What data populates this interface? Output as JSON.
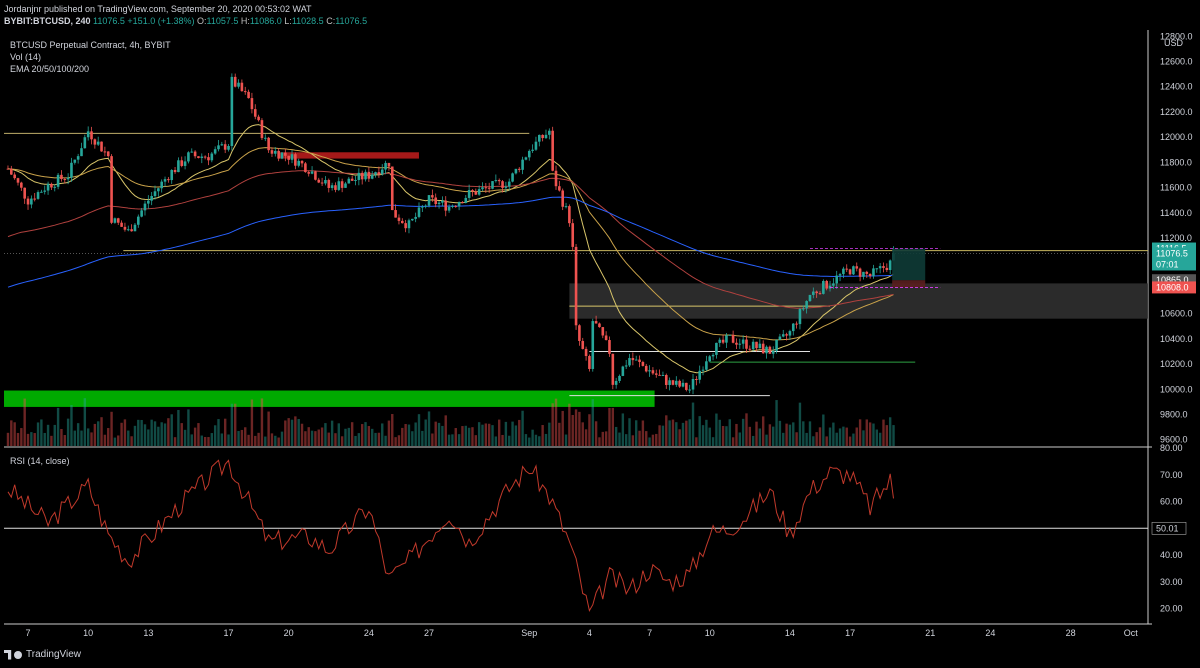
{
  "header": {
    "publisher": "Jordanjnr published on TradingView.com, September 20, 2020 00:53:02 WAT",
    "symbol": "BYBIT:BTCUSD, 240",
    "last": "11076.5",
    "change": "+151.0 (+1.38%)",
    "open_label": "O:",
    "open": "11057.5",
    "high_label": "H:",
    "high": "11086.0",
    "low_label": "L:",
    "low": "11028.5",
    "close_label": "C:",
    "close": "11076.5"
  },
  "legend": {
    "title": "BTCUSD Perpetual Contract, 4h, BYBIT",
    "volume": "Vol (14)",
    "ema": "EMA 20/50/100/200",
    "rsi": "RSI (14, close)"
  },
  "footer": {
    "brand": "TradingView"
  },
  "colors": {
    "background": "#000000",
    "up": "#26a69a",
    "down": "#ef5350",
    "ema20": "#d8c56a",
    "ema50": "#c9a24a",
    "ema100": "#b0413e",
    "ema200": "#2962ff",
    "rsi": "#c0392b",
    "support_zone": "#00b300",
    "resistance_zone": "#b71c1c",
    "gray_zone": "#2a2a2a"
  },
  "chart_data": [
    {
      "type": "candlestick",
      "title": "BTCUSD Perpetual Contract, 4h, BYBIT",
      "currency": "USD",
      "y_ticks": [
        9600,
        9800,
        10000,
        10200,
        10400,
        10600,
        10800,
        11000,
        11200,
        11400,
        11600,
        11800,
        12000,
        12200,
        12400,
        12600,
        12800
      ],
      "ylim": [
        9550,
        12850
      ],
      "x_ticks": [
        "7",
        "10",
        "13",
        "17",
        "20",
        "24",
        "27",
        "Sep",
        "4",
        "7",
        "10",
        "14",
        "17",
        "21",
        "24",
        "28",
        "Oct"
      ],
      "price_path": [
        [
          "Aug 6",
          11750
        ],
        [
          "Aug 7",
          11500
        ],
        [
          "Aug 8",
          11620
        ],
        [
          "Aug 9",
          11700
        ],
        [
          "Aug 10",
          12050
        ],
        [
          "Aug 11",
          11850
        ],
        [
          "Aug 11",
          11350
        ],
        [
          "Aug 12",
          11250
        ],
        [
          "Aug 13",
          11500
        ],
        [
          "Aug 14",
          11700
        ],
        [
          "Aug 15",
          11850
        ],
        [
          "Aug 16",
          11850
        ],
        [
          "Aug 17",
          11950
        ],
        [
          "Aug 17",
          12450
        ],
        [
          "Aug 18",
          12300
        ],
        [
          "Aug 19",
          11900
        ],
        [
          "Aug 20",
          11850
        ],
        [
          "Aug 21",
          11750
        ],
        [
          "Aug 22",
          11600
        ],
        [
          "Aug 23",
          11650
        ],
        [
          "Aug 24",
          11700
        ],
        [
          "Aug 25",
          11800
        ],
        [
          "Aug 25",
          11400
        ],
        [
          "Aug 26",
          11300
        ],
        [
          "Aug 27",
          11500
        ],
        [
          "Aug 28",
          11450
        ],
        [
          "Aug 29",
          11550
        ],
        [
          "Aug 30",
          11600
        ],
        [
          "Aug 31",
          11650
        ],
        [
          "Sep 1",
          11900
        ],
        [
          "Sep 2",
          12050
        ],
        [
          "Sep 2",
          11700
        ],
        [
          "Sep 3",
          11350
        ],
        [
          "Sep 3",
          11100
        ],
        [
          "Sep 3",
          10450
        ],
        [
          "Sep 4",
          10150
        ],
        [
          "Sep 4",
          10550
        ],
        [
          "Sep 5",
          10300
        ],
        [
          "Sep 5",
          10050
        ],
        [
          "Sep 6",
          10250
        ],
        [
          "Sep 7",
          10150
        ],
        [
          "Sep 8",
          10050
        ],
        [
          "Sep 9",
          10000
        ],
        [
          "Sep 10",
          10300
        ],
        [
          "Sep 11",
          10400
        ],
        [
          "Sep 12",
          10350
        ],
        [
          "Sep 13",
          10300
        ],
        [
          "Sep 14",
          10450
        ],
        [
          "Sep 15",
          10750
        ],
        [
          "Sep 16",
          10850
        ],
        [
          "Sep 17",
          10950
        ],
        [
          "Sep 18",
          10900
        ],
        [
          "Sep 19",
          11000
        ],
        [
          "Sep 19",
          11076.5
        ]
      ],
      "price_labels": [
        {
          "value": "11116.5",
          "color": "#26a69a"
        },
        {
          "value": "11076.5",
          "color": "#26a69a"
        },
        {
          "value": "07:01",
          "color": "#26a69a"
        },
        {
          "value": "10865.0",
          "color": "#555555"
        },
        {
          "value": "10808.0",
          "color": "#ef5350"
        }
      ],
      "levels": [
        12030,
        11100,
        10660,
        10300,
        10215,
        9950
      ],
      "zones": [
        {
          "kind": "resistance",
          "from": 11830,
          "to": 11880
        },
        {
          "kind": "support",
          "from": 9860,
          "to": 9990
        },
        {
          "kind": "range",
          "from": 10560,
          "to": 10840
        }
      ]
    },
    {
      "type": "line",
      "title": "RSI (14, close)",
      "y_ticks": [
        20,
        30,
        40,
        50,
        60,
        70,
        80
      ],
      "ylim": [
        15,
        80
      ],
      "reference_line": 50,
      "reference_label": "50.01",
      "path": [
        [
          "Aug 6",
          65
        ],
        [
          "Aug 8",
          52
        ],
        [
          "Aug 10",
          66
        ],
        [
          "Aug 11",
          48
        ],
        [
          "Aug 12",
          38
        ],
        [
          "Aug 15",
          62
        ],
        [
          "Aug 17",
          75
        ],
        [
          "Aug 18",
          60
        ],
        [
          "Aug 19",
          45
        ],
        [
          "Aug 21",
          47
        ],
        [
          "Aug 22",
          42
        ],
        [
          "Aug 24",
          58
        ],
        [
          "Aug 25",
          31
        ],
        [
          "Aug 26",
          38
        ],
        [
          "Aug 28",
          56
        ],
        [
          "Aug 29",
          45
        ],
        [
          "Aug 31",
          65
        ],
        [
          "Sep 1",
          73
        ],
        [
          "Sep 2",
          62
        ],
        [
          "Sep 3",
          45
        ],
        [
          "Sep 4",
          18
        ],
        [
          "Sep 5",
          32
        ],
        [
          "Sep 6",
          27
        ],
        [
          "Sep 7",
          35
        ],
        [
          "Sep 8",
          30
        ],
        [
          "Sep 9",
          33
        ],
        [
          "Sep 10",
          48
        ],
        [
          "Sep 11",
          50
        ],
        [
          "Sep 12",
          56
        ],
        [
          "Sep 13",
          64
        ],
        [
          "Sep 14",
          48
        ],
        [
          "Sep 15",
          64
        ],
        [
          "Sep 16",
          71
        ],
        [
          "Sep 17",
          70
        ],
        [
          "Sep 18",
          58
        ],
        [
          "Sep 19",
          68
        ],
        [
          "Sep 19",
          61
        ]
      ]
    }
  ]
}
